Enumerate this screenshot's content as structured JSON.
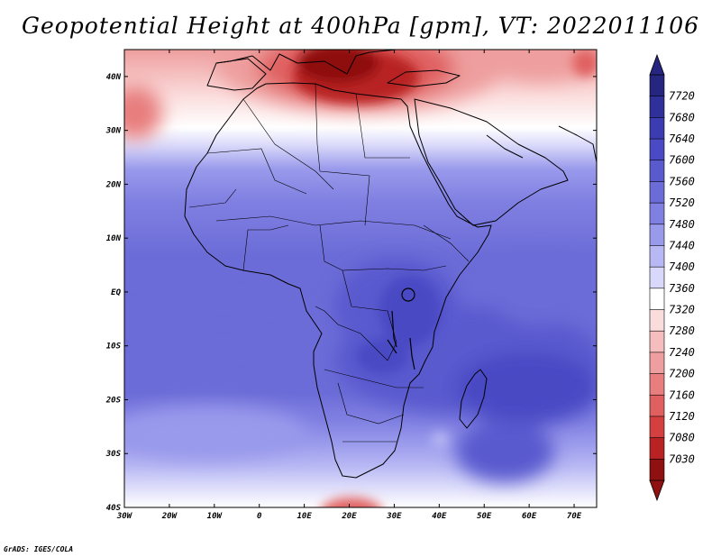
{
  "title": "Geopotential Height at 400hPa [gpm], VT: 2022011106",
  "credit": "GrADS: IGES/COLA",
  "map": {
    "lon_labels": [
      "30W",
      "20W",
      "10W",
      "0",
      "10E",
      "20E",
      "30E",
      "40E",
      "50E",
      "60E",
      "70E"
    ],
    "lon_values": [
      -30,
      -20,
      -10,
      0,
      10,
      20,
      30,
      40,
      50,
      60,
      70
    ],
    "lat_labels": [
      "40N",
      "30N",
      "20N",
      "10N",
      "EQ",
      "10S",
      "20S",
      "30S",
      "40S"
    ],
    "lat_values": [
      40,
      30,
      20,
      10,
      0,
      -10,
      -20,
      -30,
      -40
    ],
    "extent": {
      "lon_min": -30,
      "lon_max": 75,
      "lat_min": -40,
      "lat_max": 45
    }
  },
  "colorbar": {
    "labels": [
      "7720",
      "7680",
      "7640",
      "7600",
      "7560",
      "7520",
      "7480",
      "7440",
      "7400",
      "7360",
      "7320",
      "7280",
      "7240",
      "7200",
      "7160",
      "7120",
      "7080",
      "7030"
    ],
    "colors": [
      "#262680",
      "#30309a",
      "#3c3cb2",
      "#4a4ac4",
      "#5a5acf",
      "#6c6cd8",
      "#8080e2",
      "#9a9aec",
      "#b8b8f4",
      "#d8d8fa",
      "#ffffff",
      "#fbdcdc",
      "#f5bdbd",
      "#ee9e9e",
      "#e87e7e",
      "#e06060",
      "#d44040",
      "#b82222",
      "#8e1010"
    ]
  },
  "fields": {
    "blue_cores": [
      {
        "lon": 37,
        "lat": -3,
        "level": "#4a4ac4"
      },
      {
        "lon": 30,
        "lat": -12,
        "level": "#4a4ac4"
      },
      {
        "lon": 58,
        "lat": -14,
        "level": "#4a4ac4"
      },
      {
        "lon": 55,
        "lat": -28,
        "level": "#5a5acf"
      }
    ],
    "red_cores": [
      {
        "lon": 23,
        "lat": 42,
        "level": "#b82222"
      },
      {
        "lon": -29,
        "lat": 33,
        "level": "#e87e7e"
      },
      {
        "lon": 20,
        "lat": -40,
        "level": "#e06060"
      },
      {
        "lon": 70,
        "lat": 42,
        "level": "#e06060"
      }
    ]
  }
}
